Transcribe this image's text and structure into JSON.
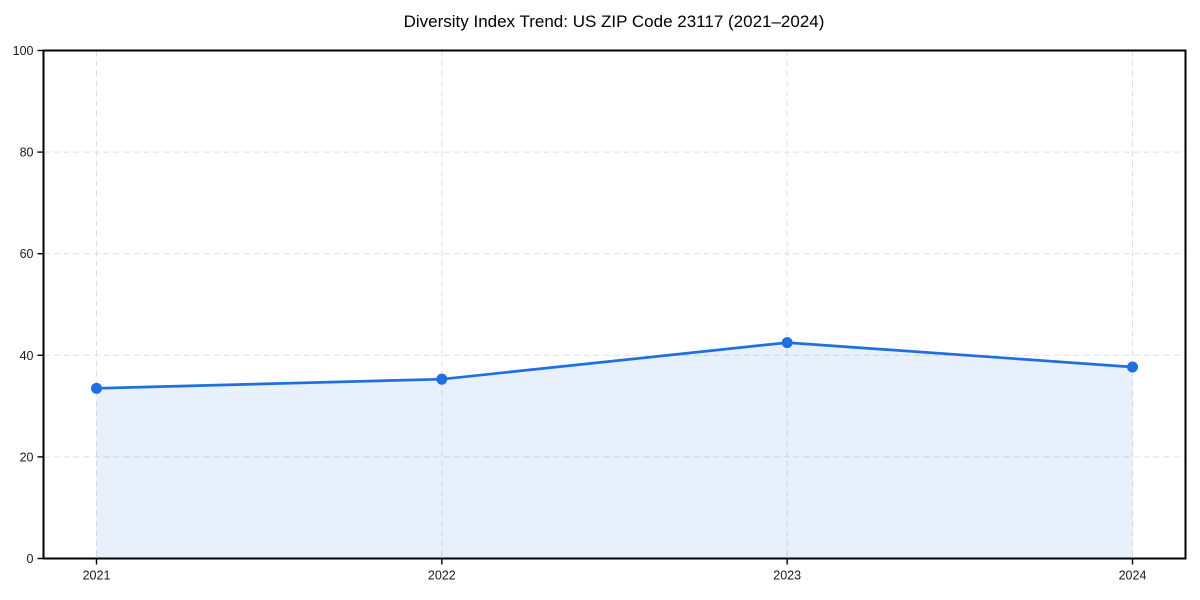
{
  "title": "Diversity Index Trend: US ZIP Code 23117 (2021–2024)",
  "chart_data": {
    "type": "area",
    "title": "Diversity Index Trend: US ZIP Code 23117 (2021–2024)",
    "x": [
      2021,
      2022,
      2023,
      2024
    ],
    "x_tick_labels": [
      "2021",
      "2022",
      "2023",
      "2024"
    ],
    "series": [
      {
        "name": "Diversity Index",
        "values": [
          33.5,
          35.3,
          42.5,
          37.7
        ]
      }
    ],
    "xlabel": "",
    "ylabel": "",
    "ylim": [
      0,
      100
    ],
    "yticks": [
      0,
      20,
      40,
      60,
      80,
      100
    ],
    "grid": true,
    "grid_style": "dashed",
    "legend_position": "none",
    "colors": {
      "line": "#1f6fe0",
      "marker": "#1f6fe0",
      "fill": "rgba(31,111,224,0.10)",
      "grid": "#dedede",
      "spine": "#000000",
      "tick_text": "#1a1a1a",
      "background": "#ffffff"
    }
  }
}
